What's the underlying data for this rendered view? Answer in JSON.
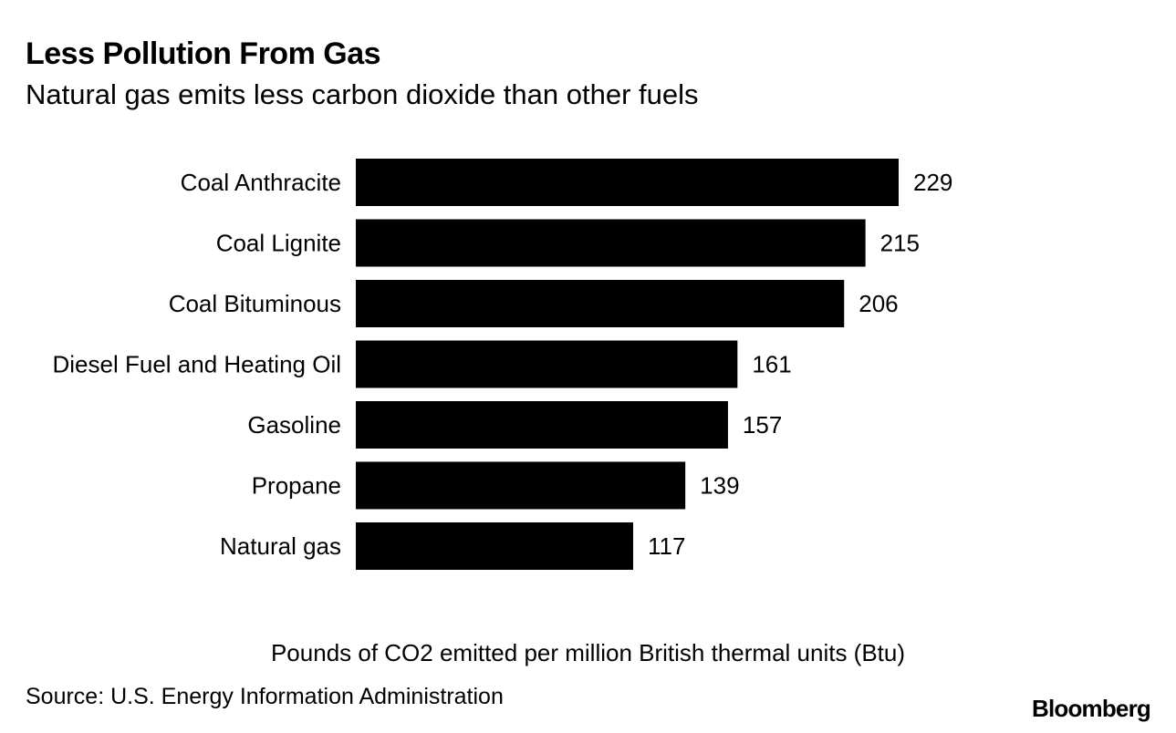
{
  "title": "Less Pollution From Gas",
  "subtitle": "Natural gas emits less carbon dioxide than other fuels",
  "source": "Source: U.S. Energy Information Administration",
  "brand": "Bloomberg",
  "chart_data": {
    "type": "bar",
    "orientation": "horizontal",
    "title": "Less Pollution From Gas",
    "subtitle": "Natural gas emits less carbon dioxide than other fuels",
    "xlabel": "Pounds of CO2 emitted per million British thermal units (Btu)",
    "ylabel": "",
    "categories": [
      "Coal Anthracite",
      "Coal Lignite",
      "Coal Bituminous",
      "Diesel Fuel and Heating Oil",
      "Gasoline",
      "Propane",
      "Natural gas"
    ],
    "values": [
      229,
      215,
      206,
      161,
      157,
      139,
      117
    ],
    "xlim": [
      0,
      229
    ],
    "grid": false,
    "legend": "none",
    "bar_color": "#000000",
    "data_labels": true
  }
}
